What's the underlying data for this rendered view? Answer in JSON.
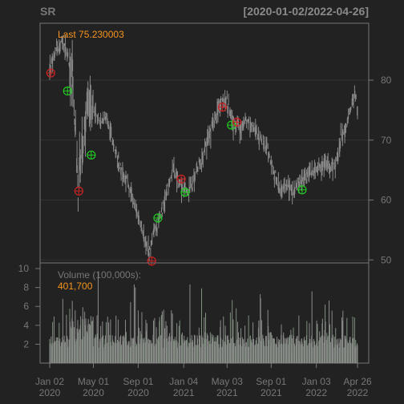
{
  "header": {
    "symbol": "SR",
    "date_range": "[2020-01-02/2022-04-26]"
  },
  "price_panel": {
    "last_label": "Last 75.230003"
  },
  "volume_panel": {
    "label": "Volume (100,000s):",
    "last_value": "401,700"
  },
  "colors": {
    "background": "#222222",
    "panel_border": "#777777",
    "grid": "#333333",
    "candle": "#8a8a8a",
    "text_muted": "#777777",
    "text_header": "#8a8a8a",
    "accent_orange": "#f7931e",
    "buy_marker": "#22cc22",
    "sell_marker": "#cc2222"
  },
  "chart_data": [
    {
      "type": "line",
      "name": "price",
      "y_ticks": [
        50,
        60,
        70,
        80
      ],
      "ylim": [
        49.5,
        89.5
      ],
      "x_ticks": [
        {
          "date": "2020-01-02",
          "label": [
            "Jan 02",
            "2020"
          ]
        },
        {
          "date": "2020-05-01",
          "label": [
            "May 01",
            "2020"
          ]
        },
        {
          "date": "2020-09-01",
          "label": [
            "Sep 01",
            "2020"
          ]
        },
        {
          "date": "2021-01-04",
          "label": [
            "Jan 04",
            "2021"
          ]
        },
        {
          "date": "2021-05-03",
          "label": [
            "May 03",
            "2021"
          ]
        },
        {
          "date": "2021-09-01",
          "label": [
            "Sep 01",
            "2021"
          ]
        },
        {
          "date": "2022-01-03",
          "label": [
            "Jan 03",
            "2022"
          ]
        },
        {
          "date": "2022-04-26",
          "label": [
            "Apr 26",
            "2022"
          ]
        }
      ],
      "xlim": [
        "2020-01-02",
        "2022-04-26"
      ],
      "price_path": [
        [
          "2020-01-02",
          82
        ],
        [
          "2020-01-20",
          85
        ],
        [
          "2020-02-05",
          86.5
        ],
        [
          "2020-02-20",
          84
        ],
        [
          "2020-03-05",
          80
        ],
        [
          "2020-03-15",
          68
        ],
        [
          "2020-03-20",
          60
        ],
        [
          "2020-04-01",
          70
        ],
        [
          "2020-04-15",
          76
        ],
        [
          "2020-05-01",
          75
        ],
        [
          "2020-05-20",
          73
        ],
        [
          "2020-06-05",
          74
        ],
        [
          "2020-06-20",
          70
        ],
        [
          "2020-07-05",
          67
        ],
        [
          "2020-07-25",
          64
        ],
        [
          "2020-08-15",
          61
        ],
        [
          "2020-09-01",
          57
        ],
        [
          "2020-09-20",
          53
        ],
        [
          "2020-10-01",
          51
        ],
        [
          "2020-10-15",
          55
        ],
        [
          "2020-11-01",
          57
        ],
        [
          "2020-11-20",
          62
        ],
        [
          "2020-12-05",
          65
        ],
        [
          "2020-12-20",
          63
        ],
        [
          "2021-01-04",
          62
        ],
        [
          "2021-01-20",
          61.5
        ],
        [
          "2021-02-05",
          64
        ],
        [
          "2021-03-01",
          68
        ],
        [
          "2021-04-01",
          74
        ],
        [
          "2021-04-20",
          77
        ],
        [
          "2021-05-03",
          76
        ],
        [
          "2021-05-20",
          73
        ],
        [
          "2021-06-10",
          72
        ],
        [
          "2021-06-25",
          73.5
        ],
        [
          "2021-07-15",
          72
        ],
        [
          "2021-08-05",
          70
        ],
        [
          "2021-08-25",
          68
        ],
        [
          "2021-09-10",
          64
        ],
        [
          "2021-09-25",
          62
        ],
        [
          "2021-10-15",
          62.5
        ],
        [
          "2021-11-01",
          61.5
        ],
        [
          "2021-11-20",
          63
        ],
        [
          "2021-12-10",
          64.5
        ],
        [
          "2022-01-03",
          65
        ],
        [
          "2022-01-25",
          66
        ],
        [
          "2022-02-10",
          65.5
        ],
        [
          "2022-02-25",
          66
        ],
        [
          "2022-03-10",
          70
        ],
        [
          "2022-03-25",
          72
        ],
        [
          "2022-04-10",
          76
        ],
        [
          "2022-04-18",
          78
        ],
        [
          "2022-04-26",
          75.23
        ]
      ],
      "buy_signals": [
        [
          "2020-02-20",
          78.2
        ],
        [
          "2020-04-25",
          67.5
        ],
        [
          "2020-10-25",
          57
        ],
        [
          "2021-01-08",
          61.3
        ],
        [
          "2021-05-15",
          72.5
        ],
        [
          "2021-11-25",
          61.7
        ]
      ],
      "sell_signals": [
        [
          "2020-01-05",
          81.2
        ],
        [
          "2020-03-22",
          61.5
        ],
        [
          "2020-10-08",
          49.8
        ],
        [
          "2020-12-28",
          63.5
        ],
        [
          "2021-04-20",
          75.5
        ],
        [
          "2021-05-30",
          73
        ]
      ]
    },
    {
      "type": "bar",
      "name": "volume",
      "unit": "100,000s",
      "y_ticks": [
        2,
        4,
        6,
        8,
        10
      ],
      "ylim": [
        0,
        10.6
      ],
      "xlim": [
        "2020-01-02",
        "2022-04-26"
      ],
      "last_value": 4.017
    }
  ]
}
